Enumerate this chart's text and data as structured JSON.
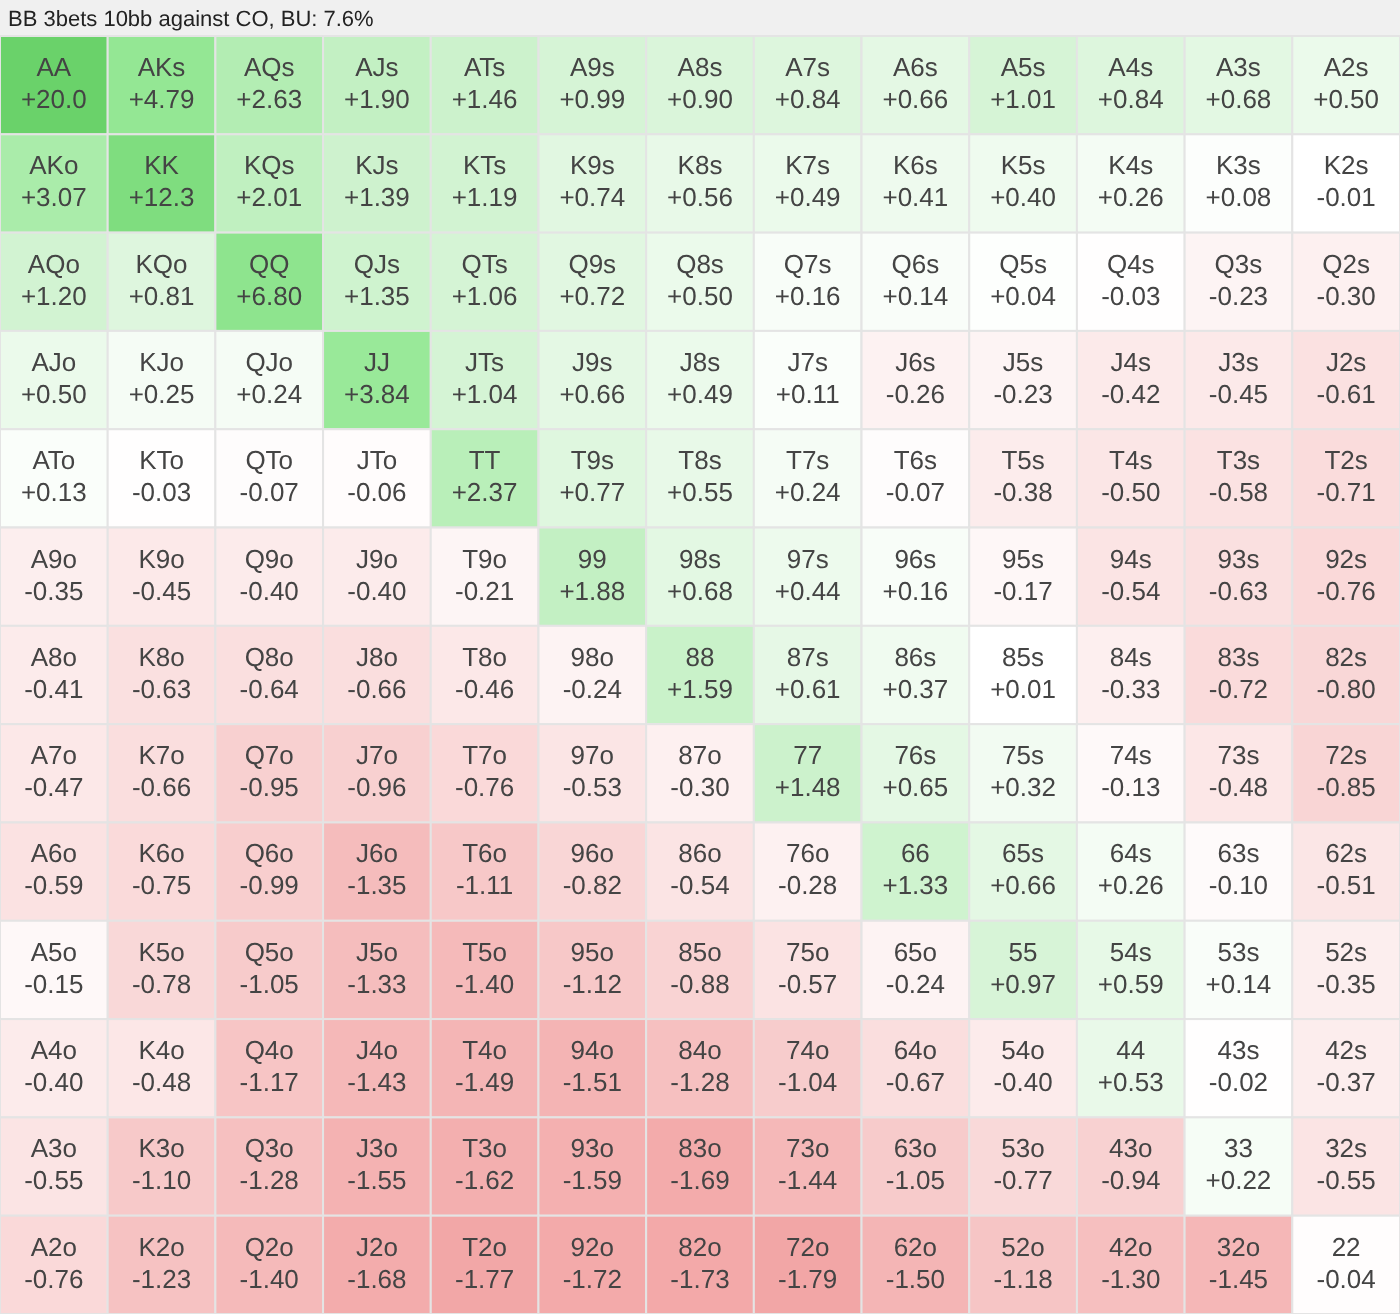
{
  "chart_data": {
    "type": "heatmap",
    "title": "BB 3bets 10bb against CO, BU: 7.6%",
    "categories": [
      null,
      null,
      null,
      null,
      null,
      null,
      null,
      null,
      null,
      null,
      null,
      null,
      null
    ],
    "y_categories": [
      null,
      null,
      null,
      null,
      null,
      null,
      null,
      null,
      null,
      null,
      null,
      null,
      null
    ],
    "cells": [
      [
        20.0,
        4.79,
        2.63,
        1.9,
        1.46,
        0.99,
        0.9,
        0.84,
        0.66,
        1.01,
        0.84,
        0.68,
        0.5
      ],
      [
        3.07,
        12.3,
        2.01,
        1.39,
        1.19,
        0.74,
        0.56,
        0.49,
        0.41,
        0.4,
        0.26,
        0.08,
        -0.01
      ],
      [
        1.2,
        0.81,
        6.8,
        1.35,
        1.06,
        0.72,
        0.5,
        0.16,
        0.14,
        0.04,
        -0.03,
        -0.23,
        -0.3
      ],
      [
        0.5,
        0.25,
        0.24,
        3.84,
        1.04,
        0.66,
        0.49,
        0.11,
        -0.26,
        -0.23,
        -0.42,
        -0.45,
        -0.61
      ],
      [
        0.13,
        -0.03,
        -0.07,
        -0.06,
        2.37,
        0.77,
        0.55,
        0.24,
        -0.07,
        -0.38,
        -0.5,
        -0.58,
        -0.71
      ],
      [
        -0.35,
        -0.45,
        -0.4,
        -0.4,
        -0.21,
        1.88,
        0.68,
        0.44,
        0.16,
        -0.17,
        -0.54,
        -0.63,
        -0.76
      ],
      [
        -0.41,
        -0.63,
        -0.64,
        -0.66,
        -0.46,
        -0.24,
        1.59,
        0.61,
        0.37,
        0.01,
        -0.33,
        -0.72,
        -0.8
      ],
      [
        -0.47,
        -0.66,
        -0.95,
        -0.96,
        -0.76,
        -0.53,
        -0.3,
        1.48,
        0.65,
        0.32,
        -0.13,
        -0.48,
        -0.85
      ],
      [
        -0.59,
        -0.75,
        -0.99,
        -1.35,
        -1.11,
        -0.82,
        -0.54,
        -0.28,
        1.33,
        0.66,
        0.26,
        -0.1,
        -0.51
      ],
      [
        -0.15,
        -0.78,
        -1.05,
        -1.33,
        -1.4,
        -1.12,
        -0.88,
        -0.57,
        -0.24,
        0.97,
        0.59,
        0.14,
        -0.35
      ],
      [
        -0.4,
        -0.48,
        -1.17,
        -1.43,
        -1.49,
        -1.51,
        -1.28,
        -1.04,
        -0.67,
        -0.4,
        0.53,
        -0.02,
        -0.37
      ],
      [
        -0.55,
        -1.1,
        -1.28,
        -1.55,
        -1.62,
        -1.59,
        -1.69,
        -1.44,
        -1.05,
        -0.77,
        -0.94,
        0.22,
        -0.55
      ],
      [
        -0.76,
        -1.23,
        -1.4,
        -1.68,
        -1.77,
        -1.72,
        -1.73,
        -1.79,
        -1.5,
        -1.18,
        -1.3,
        -1.45,
        -0.04
      ]
    ],
    "cell_labels": [
      [
        "+20.0",
        "+4.79",
        "+2.63",
        "+1.90",
        "+1.46",
        "+0.99",
        "+0.90",
        "+0.84",
        "+0.66",
        "+1.01",
        "+0.84",
        "+0.68",
        "+0.50"
      ],
      [
        "+3.07",
        "+12.3",
        "+2.01",
        "+1.39",
        "+1.19",
        "+0.74",
        "+0.56",
        "+0.49",
        "+0.41",
        "+0.40",
        "+0.26",
        "+0.08",
        "-0.01"
      ],
      [
        "+1.20",
        "+0.81",
        "+6.80",
        "+1.35",
        "+1.06",
        "+0.72",
        "+0.50",
        "+0.16",
        "+0.14",
        "+0.04",
        "-0.03",
        "-0.23",
        "-0.30"
      ],
      [
        "+0.50",
        "+0.25",
        "+0.24",
        "+3.84",
        "+1.04",
        "+0.66",
        "+0.49",
        "+0.11",
        "-0.26",
        "-0.23",
        "-0.42",
        "-0.45",
        "-0.61"
      ],
      [
        "+0.13",
        "-0.03",
        "-0.07",
        "-0.06",
        "+2.37",
        "+0.77",
        "+0.55",
        "+0.24",
        "-0.07",
        "-0.38",
        "-0.50",
        "-0.58",
        "-0.71"
      ],
      [
        "-0.35",
        "-0.45",
        "-0.40",
        "-0.40",
        "-0.21",
        "+1.88",
        "+0.68",
        "+0.44",
        "+0.16",
        "-0.17",
        "-0.54",
        "-0.63",
        "-0.76"
      ],
      [
        "-0.41",
        "-0.63",
        "-0.64",
        "-0.66",
        "-0.46",
        "-0.24",
        "+1.59",
        "+0.61",
        "+0.37",
        "+0.01",
        "-0.33",
        "-0.72",
        "-0.80"
      ],
      [
        "-0.47",
        "-0.66",
        "-0.95",
        "-0.96",
        "-0.76",
        "-0.53",
        "-0.30",
        "+1.48",
        "+0.65",
        "+0.32",
        "-0.13",
        "-0.48",
        "-0.85"
      ],
      [
        "-0.59",
        "-0.75",
        "-0.99",
        "-1.35",
        "-1.11",
        "-0.82",
        "-0.54",
        "-0.28",
        "+1.33",
        "+0.66",
        "+0.26",
        "-0.10",
        "-0.51"
      ],
      [
        "-0.15",
        "-0.78",
        "-1.05",
        "-1.33",
        "-1.40",
        "-1.12",
        "-0.88",
        "-0.57",
        "-0.24",
        "+0.97",
        "+0.59",
        "+0.14",
        "-0.35"
      ],
      [
        "-0.40",
        "-0.48",
        "-1.17",
        "-1.43",
        "-1.49",
        "-1.51",
        "-1.28",
        "-1.04",
        "-0.67",
        "-0.40",
        "+0.53",
        "-0.02",
        "-0.37"
      ],
      [
        "-0.55",
        "-1.10",
        "-1.28",
        "-1.55",
        "-1.62",
        "-1.59",
        "-1.69",
        "-1.44",
        "-1.05",
        "-0.77",
        "-0.94",
        "+0.22",
        "-0.55"
      ],
      [
        "-0.76",
        "-1.23",
        "-1.40",
        "-1.68",
        "-1.77",
        "-1.72",
        "-1.73",
        "-1.79",
        "-1.50",
        "-1.18",
        "-1.30",
        "-1.45",
        "-0.04"
      ]
    ],
    "annotations": [
      "AA",
      "AKs",
      "AQs",
      "AJs",
      "ATs",
      "A9s",
      "A8s",
      "A7s",
      "A6s",
      "A5s",
      "A4s",
      "A3s",
      "A2s",
      "AKo",
      "KK",
      "KQs",
      "KJs",
      "KTs",
      "K9s",
      "K8s",
      "K7s",
      "K6s",
      "K5s",
      "K4s",
      "K3s",
      "K2s",
      "AQo",
      "KQo",
      "QQ",
      "QJs",
      "QTs",
      "Q9s",
      "Q8s",
      "Q7s",
      "Q6s",
      "Q5s",
      "Q4s",
      "Q3s",
      "Q2s",
      "AJo",
      "KJo",
      "QJo",
      "JJ",
      "JTs",
      "J9s",
      "J8s",
      "J7s",
      "J6s",
      "J5s",
      "J4s",
      "J3s",
      "J2s",
      "ATo",
      "KTo",
      "QTo",
      "JTo",
      "TT",
      "T9s",
      "T8s",
      "T7s",
      "T6s",
      "T5s",
      "T4s",
      "T3s",
      "T2s",
      "A9o",
      "K9o",
      "Q9o",
      "J9o",
      "T9o",
      "99",
      "98s",
      "97s",
      "96s",
      "95s",
      "94s",
      "93s",
      "92s",
      "A8o",
      "K8o",
      "Q8o",
      "J8o",
      "T8o",
      "98o",
      "88",
      "87s",
      "86s",
      "85s",
      "84s",
      "83s",
      "82s",
      "A7o",
      "K7o",
      "Q7o",
      "J7o",
      "T7o",
      "97o",
      "87o",
      "77",
      "76s",
      "75s",
      "74s",
      "73s",
      "72s",
      "A6o",
      "K6o",
      "Q6o",
      "J6o",
      "T6o",
      "96o",
      "86o",
      "76o",
      "66",
      "65s",
      "64s",
      "63s",
      "62s",
      "A5o",
      "K5o",
      "Q5o",
      "J5o",
      "T5o",
      "95o",
      "85o",
      "75o",
      "65o",
      "55",
      "54s",
      "53s",
      "52s",
      "A4o",
      "K4o",
      "Q4o",
      "J4o",
      "T4o",
      "94o",
      "84o",
      "74o",
      "64o",
      "54o",
      "44",
      "43s",
      "42s",
      "A3o",
      "K3o",
      "Q3o",
      "J3o",
      "T3o",
      "93o",
      "83o",
      "73o",
      "63o",
      "53o",
      "43o",
      "33",
      "32s",
      "A2o",
      "K2o",
      "Q2o",
      "J2o",
      "T2o",
      "92o",
      "82o",
      "72o",
      "62o",
      "52o",
      "42o",
      "32o",
      "22"
    ]
  }
}
